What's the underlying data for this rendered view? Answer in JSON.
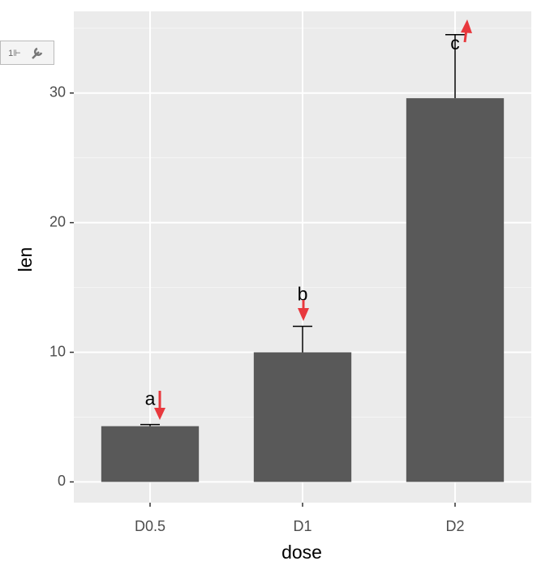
{
  "chart_data": {
    "type": "bar",
    "x_label": "dose",
    "y_label": "len",
    "categories": [
      "D0.5",
      "D1",
      "D2"
    ],
    "values": [
      4.3,
      10.0,
      29.6
    ],
    "errors": [
      0.13,
      2.0,
      4.9
    ],
    "annotations": [
      "a",
      "b",
      "c"
    ],
    "color": "#595959",
    "ylim": [
      -1.6,
      36.3
    ],
    "yticks": [
      0,
      10,
      20,
      30
    ],
    "minor_yticks": [
      5,
      15,
      25,
      35
    ],
    "grid": true
  }
}
